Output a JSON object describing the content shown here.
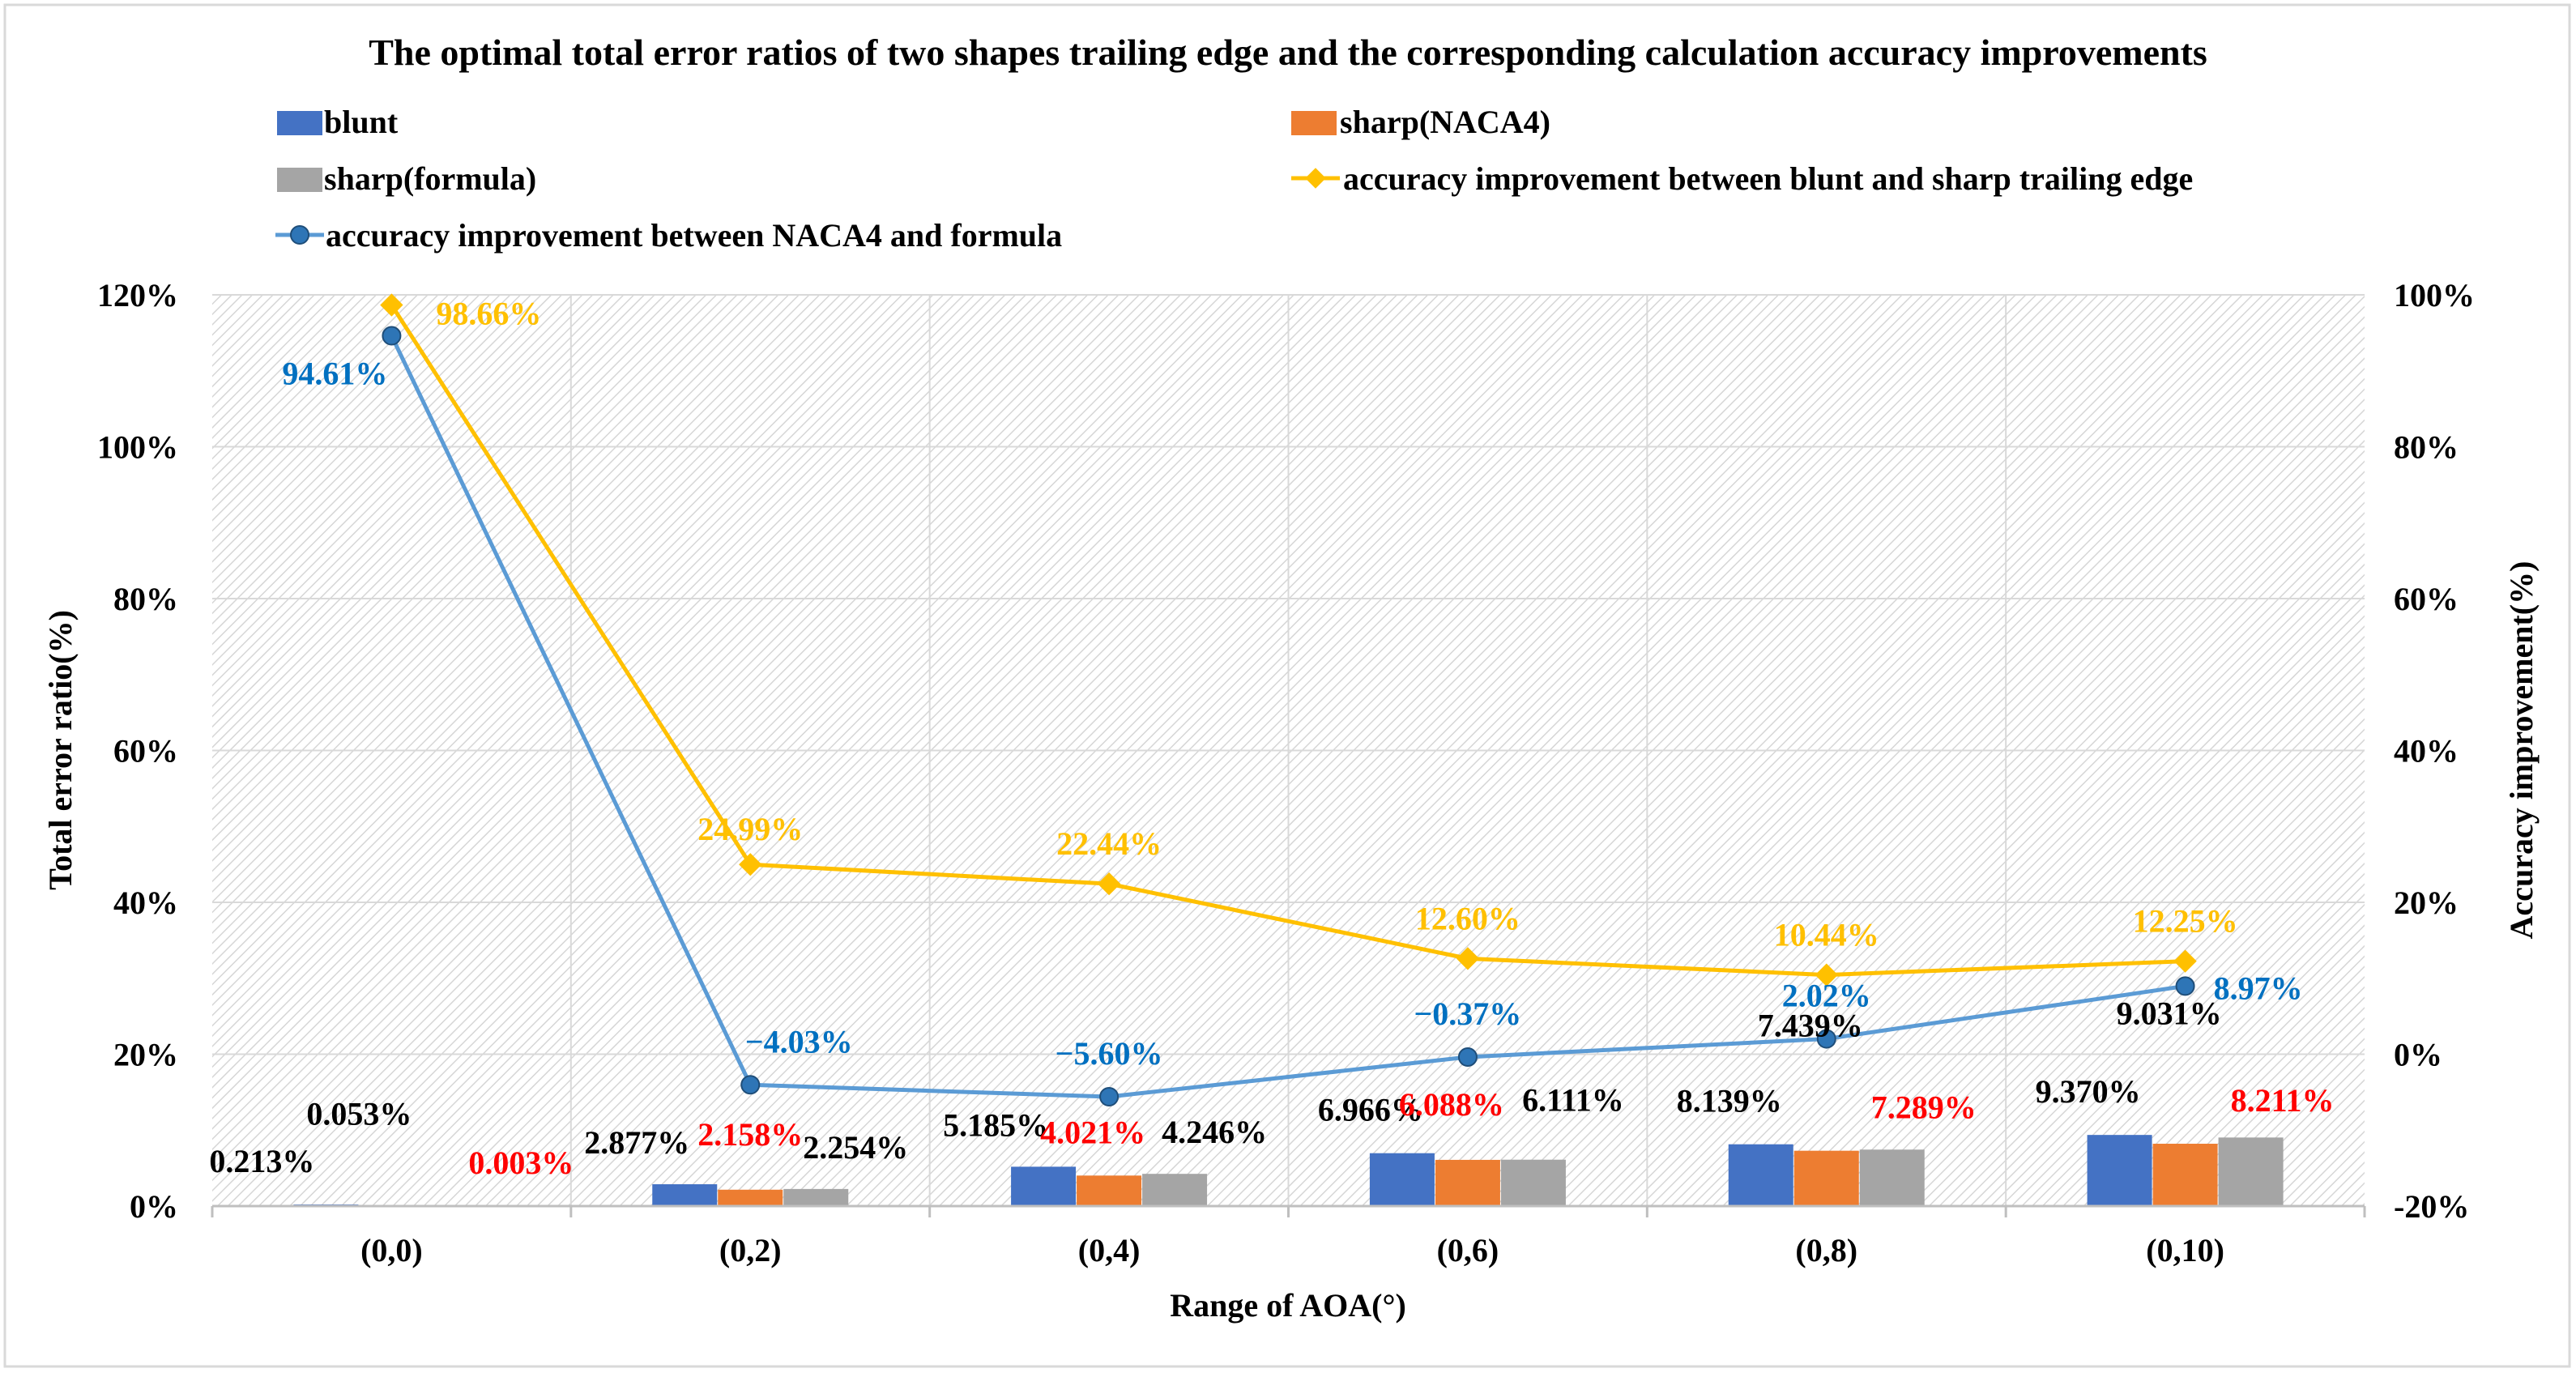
{
  "chart_data": {
    "type": "bar",
    "title": "The optimal total error ratios of two shapes trailing edge and the corresponding calculation accuracy improvements",
    "xlabel": "Range of AOA(°)",
    "ylabel": "Total error ratio(%)",
    "y2label": "Accuracy improvement(%)",
    "categories": [
      "(0,0)",
      "(0,2)",
      "(0,4)",
      "(0,6)",
      "(0,8)",
      "(0,10)"
    ],
    "ylim": [
      0,
      120
    ],
    "yticks": [
      "0%",
      "20%",
      "40%",
      "60%",
      "80%",
      "100%",
      "120%"
    ],
    "y2lim": [
      -20,
      100
    ],
    "y2ticks": [
      "-20%",
      "0%",
      "20%",
      "40%",
      "60%",
      "80%",
      "100%"
    ],
    "grid": true,
    "legend_position": "top",
    "colors": {
      "blunt": "#4472C4",
      "sharp_naca4": "#ED7D31",
      "sharp_formula": "#A5A5A5",
      "improve_blunt_sharp": "#FFC000",
      "improve_naca_formula": "#5B9BD5",
      "label_red": "#FF0000",
      "label_blue": "#0070C0",
      "label_black": "#000000"
    },
    "bar_series": [
      {
        "name": "blunt",
        "values": [
          0.213,
          2.877,
          5.185,
          6.966,
          8.139,
          9.37
        ],
        "labels": [
          "0.213%",
          "2.877%",
          "5.185%",
          "6.966%",
          "8.139%",
          "9.370%"
        ]
      },
      {
        "name": "sharp(NACA4)",
        "values": [
          0.003,
          2.158,
          4.021,
          6.088,
          7.289,
          8.211
        ],
        "labels": [
          "0.003%",
          "2.158%",
          "4.021%",
          "6.088%",
          "7.289%",
          "8.211%"
        ]
      },
      {
        "name": "sharp(formula)",
        "values": [
          0.053,
          2.254,
          4.246,
          6.111,
          7.439,
          9.031
        ],
        "labels": [
          "0.053%",
          "2.254%",
          "4.246%",
          "6.111%",
          "7.439%",
          "9.031%"
        ]
      }
    ],
    "line_series": [
      {
        "name": "accuracy improvement between blunt and sharp trailing edge",
        "axis": "right",
        "values": [
          98.66,
          24.99,
          22.44,
          12.6,
          10.44,
          12.25
        ],
        "labels": [
          "98.66%",
          "24.99%",
          "22.44%",
          "12.60%",
          "10.44%",
          "12.25%"
        ]
      },
      {
        "name": "accuracy improvement between NACA4 and formula",
        "axis": "right",
        "values": [
          94.61,
          -4.03,
          -5.6,
          -0.37,
          2.02,
          8.97
        ],
        "labels": [
          "94.61%",
          "−4.03%",
          "−5.60%",
          "−0.37%",
          "2.02%",
          "8.97%"
        ]
      }
    ]
  }
}
